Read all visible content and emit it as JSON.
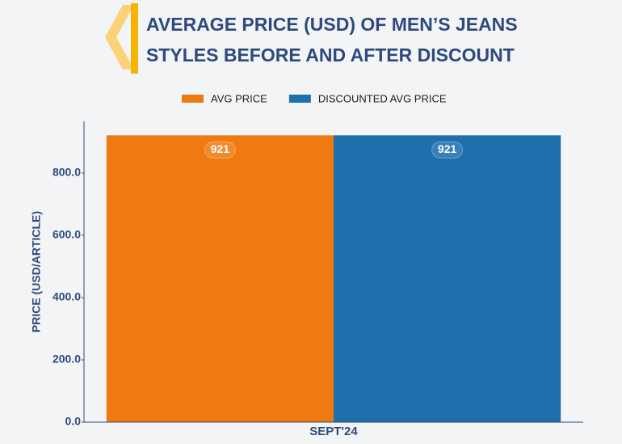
{
  "chart_data": {
    "type": "bar",
    "title": [
      "AVERAGE PRICE (USD) OF MEN’S JEANS",
      "STYLES BEFORE AND AFTER DISCOUNT"
    ],
    "categories": [
      "SEPT'24"
    ],
    "series": [
      {
        "name": "AVG PRICE",
        "color": "#f07a12",
        "values": [
          921
        ],
        "value_labels": [
          "921"
        ]
      },
      {
        "name": "DISCOUNTED AVG PRICE",
        "color": "#1f6fad",
        "values": [
          921
        ],
        "value_labels": [
          "921"
        ]
      }
    ],
    "y_label": "PRICE (USD/ARTICLE)",
    "ylim": [
      0,
      966
    ],
    "yticks": [
      {
        "value": 0,
        "label": "0.0"
      },
      {
        "value": 200,
        "label": "200.0"
      },
      {
        "value": 400,
        "label": "400.0"
      },
      {
        "value": 600,
        "label": "600.0"
      },
      {
        "value": 800,
        "label": "800.0"
      }
    ],
    "legend": "top"
  }
}
